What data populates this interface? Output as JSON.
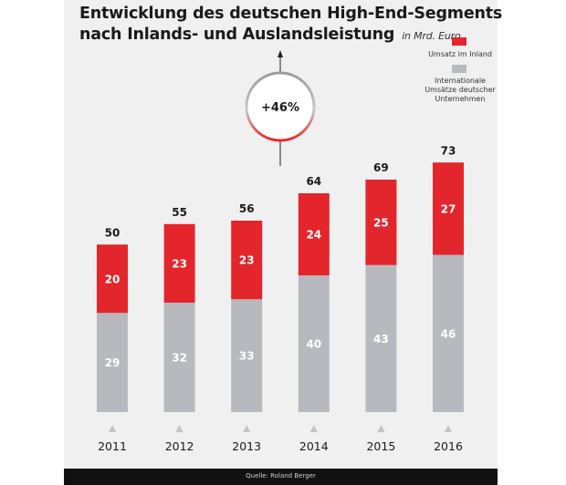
{
  "chart_data": {
    "type": "bar",
    "stacked": true,
    "title": "Entwicklung des deutschen High-End-Segments",
    "title_line2": "nach Inlands- und Auslandsleistung",
    "unit": "in Mrd. Euro",
    "categories": [
      "2011",
      "2012",
      "2013",
      "2014",
      "2015",
      "2016"
    ],
    "series": [
      {
        "name": "Internationale Umsätze deutscher Unternehmen",
        "values": [
          29,
          32,
          33,
          40,
          43,
          46
        ],
        "color": "#b7b9bf"
      },
      {
        "name": "Umsatz im Inland",
        "values": [
          20,
          23,
          23,
          24,
          25,
          27
        ],
        "color": "#e3262b"
      }
    ],
    "totals": [
      50,
      55,
      56,
      64,
      69,
      73
    ],
    "annotation": "+46%",
    "legend": {
      "position": "top-right",
      "items": [
        {
          "label": "Umsatz im Inland",
          "color": "#e3262b"
        },
        {
          "label_lines": [
            "Internationale",
            "Umsätze deutscher",
            "Unternehmen"
          ],
          "color": "#b7b9bf"
        }
      ]
    },
    "ylim": [
      0,
      80
    ],
    "grid": false,
    "source": "Quelle: Roland Berger"
  }
}
